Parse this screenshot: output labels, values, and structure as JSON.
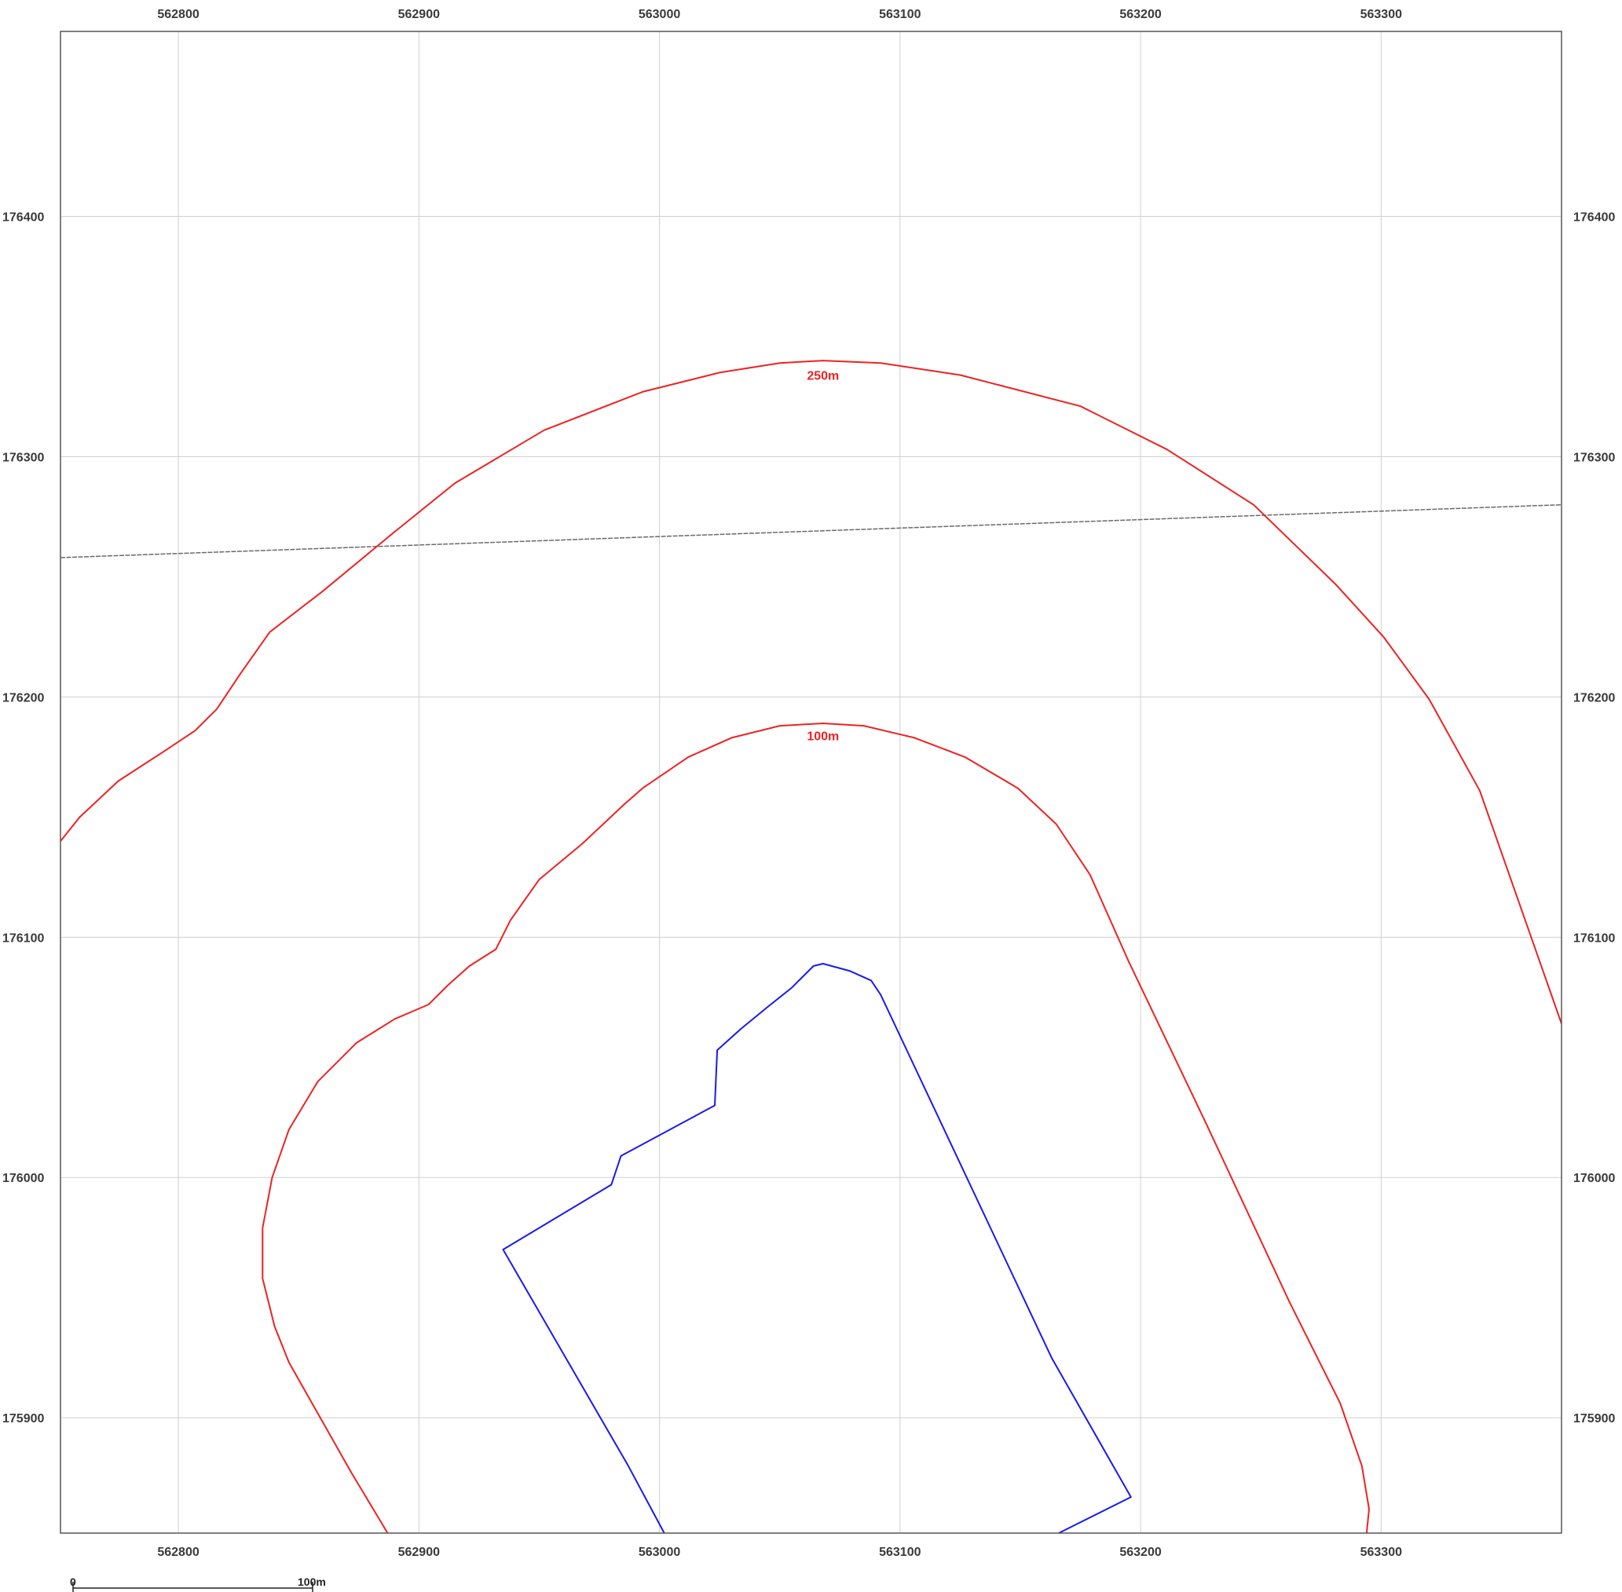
{
  "map": {
    "crs_extent": {
      "x_min": 562751,
      "x_max": 563375,
      "y_min": 175852,
      "y_max": 176477
    },
    "grid": {
      "x_ticks": [
        562800,
        562900,
        563000,
        563100,
        563200,
        563300
      ],
      "y_ticks": [
        176400,
        176300,
        176200,
        176100,
        176000,
        175900
      ]
    },
    "colors": {
      "frame": "#555555",
      "grid": "#cfcfcf",
      "buffer": "#ee2222",
      "site": "#1a1aee",
      "road": "#6a6a6a"
    },
    "road_line": {
      "points": [
        [
          562751,
          176258
        ],
        [
          563375,
          176280
        ]
      ]
    },
    "site_boundary": {
      "points": [
        [
          563002,
          175852
        ],
        [
          562987,
          175880
        ],
        [
          562935,
          175970
        ],
        [
          562980,
          175997
        ],
        [
          562984,
          176009
        ],
        [
          563023,
          176030
        ],
        [
          563024,
          176053
        ],
        [
          563034,
          176062
        ],
        [
          563045,
          176071
        ],
        [
          563055,
          176079
        ],
        [
          563064,
          176088
        ],
        [
          563068,
          176089
        ],
        [
          563079,
          176086
        ],
        [
          563088,
          176082
        ],
        [
          563092,
          176076
        ],
        [
          563163,
          175925
        ],
        [
          563196,
          175867
        ],
        [
          563166,
          175852
        ]
      ]
    },
    "buffers": [
      {
        "label": "100m",
        "label_anchor": [
          563068,
          176184
        ],
        "points": [
          [
            562887,
            175852
          ],
          [
            562872,
            175877
          ],
          [
            562846,
            175923
          ],
          [
            562840,
            175938
          ],
          [
            562835,
            175958
          ],
          [
            562835,
            175979
          ],
          [
            562839,
            176000
          ],
          [
            562846,
            176020
          ],
          [
            562858,
            176040
          ],
          [
            562874,
            176056
          ],
          [
            562890,
            176066
          ],
          [
            562904,
            176072
          ],
          [
            562912,
            176080
          ],
          [
            562921,
            176088
          ],
          [
            562932,
            176095
          ],
          [
            562938,
            176107
          ],
          [
            562950,
            176124
          ],
          [
            562968,
            176139
          ],
          [
            562985,
            176155
          ],
          [
            562993,
            176162
          ],
          [
            563012,
            176175
          ],
          [
            563030,
            176183
          ],
          [
            563050,
            176188
          ],
          [
            563068,
            176189
          ],
          [
            563085,
            176188
          ],
          [
            563106,
            176183
          ],
          [
            563127,
            176175
          ],
          [
            563149,
            176162
          ],
          [
            563165,
            176147
          ],
          [
            563179,
            176126
          ],
          [
            563195,
            176090
          ],
          [
            563227,
            176023
          ],
          [
            563262,
            175948
          ],
          [
            563283,
            175906
          ],
          [
            563292,
            175880
          ],
          [
            563295,
            175862
          ],
          [
            563294,
            175852
          ]
        ]
      },
      {
        "label": "250m",
        "label_anchor": [
          563068,
          176334
        ],
        "points": [
          [
            562751,
            176140
          ],
          [
            562759,
            176150
          ],
          [
            562775,
            176165
          ],
          [
            562795,
            176178
          ],
          [
            562807,
            176186
          ],
          [
            562816,
            176195
          ],
          [
            562826,
            176210
          ],
          [
            562838,
            176227
          ],
          [
            562860,
            176244
          ],
          [
            562889,
            176268
          ],
          [
            562915,
            176289
          ],
          [
            562952,
            176311
          ],
          [
            562993,
            176327
          ],
          [
            563025,
            176335
          ],
          [
            563050,
            176339
          ],
          [
            563068,
            176340
          ],
          [
            563092,
            176339
          ],
          [
            563125,
            176334
          ],
          [
            563175,
            176321
          ],
          [
            563211,
            176303
          ],
          [
            563247,
            176280
          ],
          [
            563281,
            176247
          ],
          [
            563301,
            176225
          ],
          [
            563320,
            176199
          ],
          [
            563341,
            176161
          ],
          [
            563375,
            176064
          ]
        ]
      }
    ]
  },
  "scale_bar": {
    "start_label": "0",
    "end_label": "100m",
    "length_m": 100
  }
}
